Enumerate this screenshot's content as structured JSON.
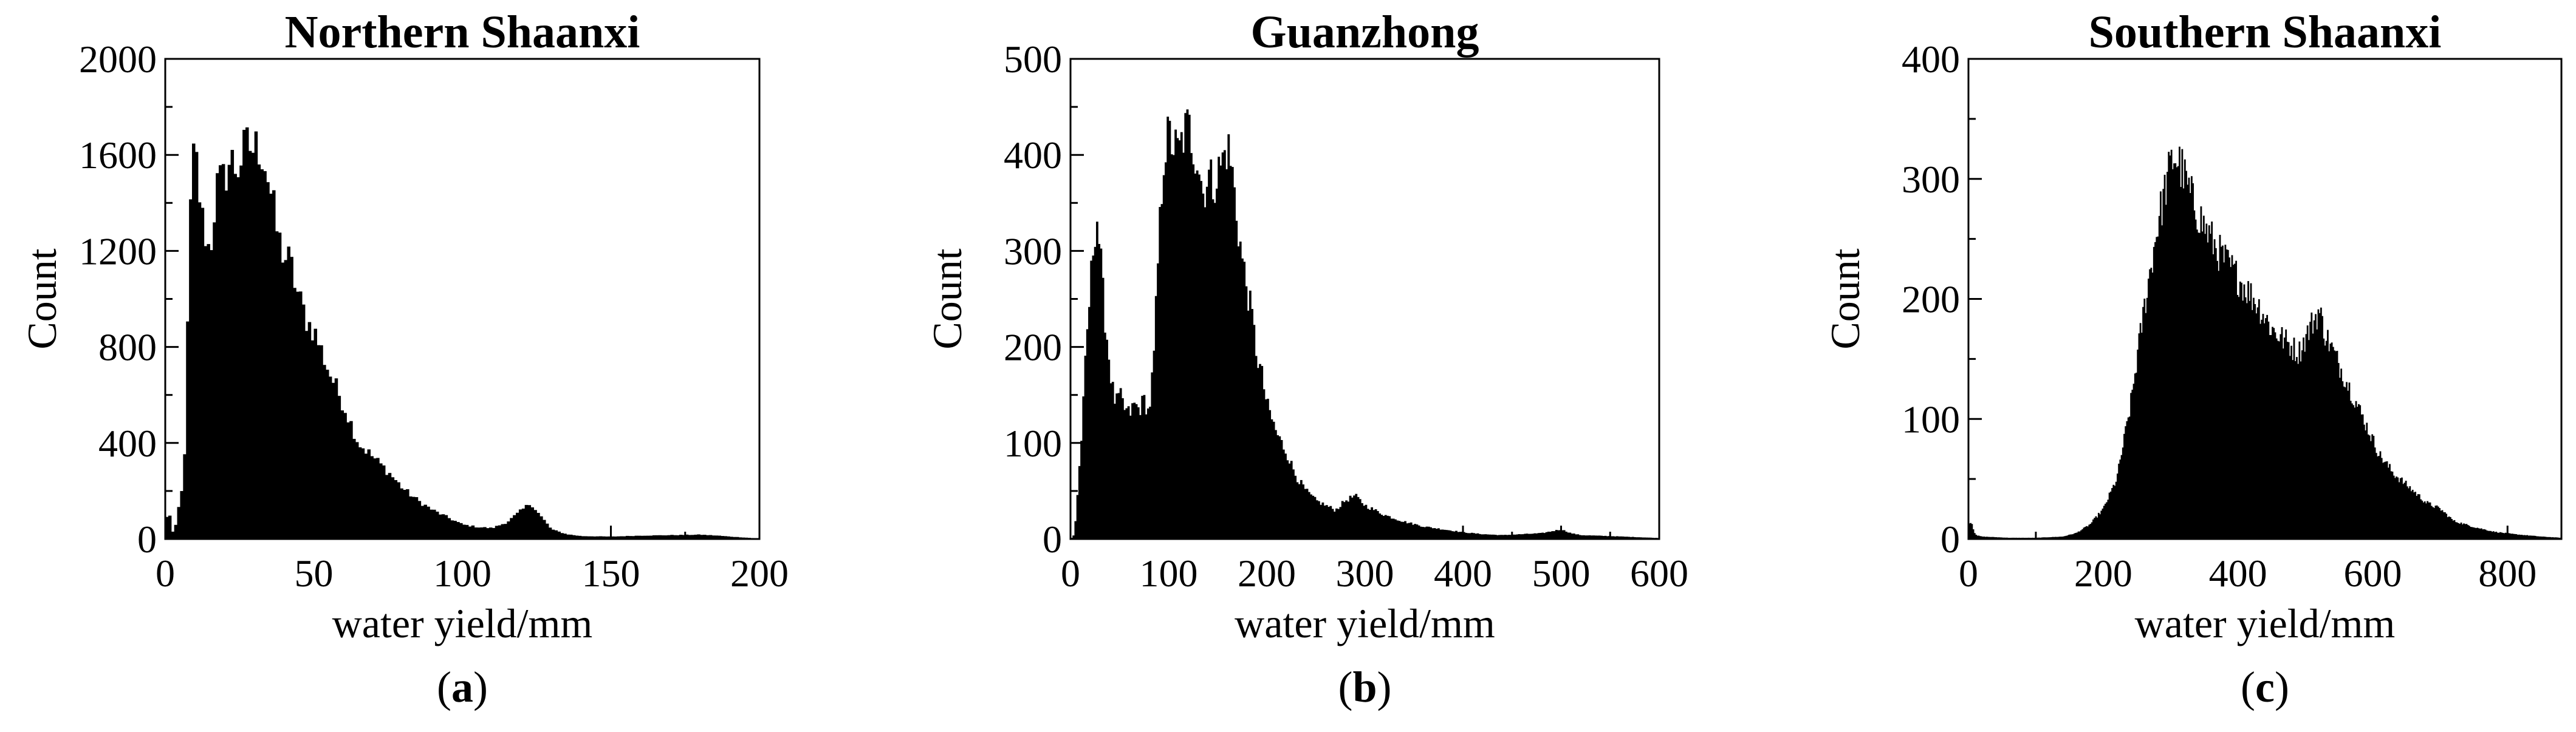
{
  "chart_data": [
    {
      "type": "bar",
      "panel_label": "a",
      "title": "Northern Shaanxi",
      "xlabel": "water yield/mm",
      "ylabel": "Count",
      "xlim": [
        0,
        200
      ],
      "ylim": [
        0,
        2000
      ],
      "xticks": [
        0,
        50,
        100,
        150,
        200
      ],
      "yticks": [
        0,
        400,
        800,
        1200,
        1600,
        2000
      ],
      "grid": false,
      "bin_width": 1,
      "profile": [
        [
          0,
          20
        ],
        [
          1,
          160
        ],
        [
          2,
          40
        ],
        [
          3,
          20
        ],
        [
          4,
          90
        ],
        [
          5,
          170
        ],
        [
          6,
          220
        ],
        [
          7,
          520
        ],
        [
          8,
          1200
        ],
        [
          9,
          1550
        ],
        [
          10,
          1600
        ],
        [
          11,
          1520
        ],
        [
          12,
          1350
        ],
        [
          13,
          1300
        ],
        [
          14,
          1250
        ],
        [
          15,
          1180
        ],
        [
          16,
          1320
        ],
        [
          17,
          1430
        ],
        [
          18,
          1500
        ],
        [
          19,
          1460
        ],
        [
          20,
          1520
        ],
        [
          22,
          1580
        ],
        [
          24,
          1540
        ],
        [
          26,
          1600
        ],
        [
          28,
          1640
        ],
        [
          30,
          1620
        ],
        [
          32,
          1640
        ],
        [
          34,
          1550
        ],
        [
          36,
          1400
        ],
        [
          38,
          1250
        ],
        [
          40,
          1180
        ],
        [
          42,
          1150
        ],
        [
          45,
          1000
        ],
        [
          48,
          900
        ],
        [
          50,
          870
        ],
        [
          55,
          700
        ],
        [
          60,
          560
        ],
        [
          65,
          400
        ],
        [
          70,
          340
        ],
        [
          75,
          280
        ],
        [
          80,
          210
        ],
        [
          85,
          160
        ],
        [
          90,
          120
        ],
        [
          95,
          90
        ],
        [
          100,
          60
        ],
        [
          105,
          50
        ],
        [
          110,
          45
        ],
        [
          115,
          70
        ],
        [
          120,
          120
        ],
        [
          123,
          150
        ],
        [
          126,
          100
        ],
        [
          130,
          40
        ],
        [
          135,
          20
        ],
        [
          140,
          12
        ],
        [
          150,
          10
        ],
        [
          160,
          14
        ],
        [
          170,
          16
        ],
        [
          180,
          18
        ],
        [
          186,
          14
        ],
        [
          190,
          10
        ],
        [
          200,
          2
        ]
      ]
    },
    {
      "type": "bar",
      "panel_label": "b",
      "title": "Guanzhong",
      "xlabel": "water yield/mm",
      "ylabel": "Count",
      "xlim": [
        0,
        600
      ],
      "ylim": [
        0,
        500
      ],
      "xticks": [
        0,
        100,
        200,
        300,
        400,
        500,
        600
      ],
      "yticks": [
        0,
        100,
        200,
        300,
        400,
        500
      ],
      "grid": false,
      "bin_width": 2,
      "profile": [
        [
          0,
          0
        ],
        [
          4,
          5
        ],
        [
          8,
          60
        ],
        [
          12,
          120
        ],
        [
          16,
          200
        ],
        [
          20,
          260
        ],
        [
          24,
          320
        ],
        [
          27,
          335
        ],
        [
          30,
          300
        ],
        [
          34,
          240
        ],
        [
          38,
          200
        ],
        [
          42,
          160
        ],
        [
          46,
          140
        ],
        [
          50,
          150
        ],
        [
          55,
          135
        ],
        [
          60,
          130
        ],
        [
          65,
          140
        ],
        [
          70,
          135
        ],
        [
          75,
          145
        ],
        [
          80,
          130
        ],
        [
          85,
          190
        ],
        [
          90,
          310
        ],
        [
          95,
          400
        ],
        [
          100,
          420
        ],
        [
          105,
          410
        ],
        [
          110,
          400
        ],
        [
          115,
          420
        ],
        [
          120,
          430
        ],
        [
          125,
          410
        ],
        [
          130,
          395
        ],
        [
          135,
          360
        ],
        [
          140,
          380
        ],
        [
          145,
          370
        ],
        [
          150,
          380
        ],
        [
          155,
          395
        ],
        [
          160,
          410
        ],
        [
          165,
          380
        ],
        [
          170,
          330
        ],
        [
          175,
          290
        ],
        [
          180,
          260
        ],
        [
          185,
          230
        ],
        [
          190,
          190
        ],
        [
          195,
          170
        ],
        [
          200,
          140
        ],
        [
          210,
          110
        ],
        [
          220,
          90
        ],
        [
          230,
          65
        ],
        [
          240,
          50
        ],
        [
          250,
          40
        ],
        [
          260,
          35
        ],
        [
          270,
          30
        ],
        [
          280,
          40
        ],
        [
          290,
          45
        ],
        [
          300,
          35
        ],
        [
          320,
          25
        ],
        [
          340,
          18
        ],
        [
          360,
          13
        ],
        [
          380,
          10
        ],
        [
          400,
          7
        ],
        [
          420,
          5
        ],
        [
          440,
          4
        ],
        [
          460,
          5
        ],
        [
          480,
          6
        ],
        [
          490,
          8
        ],
        [
          500,
          10
        ],
        [
          510,
          6
        ],
        [
          520,
          4
        ],
        [
          550,
          3
        ],
        [
          600,
          1
        ]
      ]
    },
    {
      "type": "bar",
      "panel_label": "c",
      "title": "Southern Shaanxi",
      "xlabel": "water yield/mm",
      "ylabel": "Count",
      "xlim": [
        0,
        880
      ],
      "ylim": [
        0,
        400
      ],
      "xticks": [
        0,
        200,
        400,
        600,
        800
      ],
      "yticks": [
        0,
        100,
        200,
        300,
        400
      ],
      "grid": false,
      "bin_width": 2,
      "profile": [
        [
          0,
          12
        ],
        [
          4,
          15
        ],
        [
          8,
          6
        ],
        [
          12,
          3
        ],
        [
          20,
          2
        ],
        [
          60,
          1
        ],
        [
          100,
          1
        ],
        [
          140,
          2
        ],
        [
          160,
          5
        ],
        [
          180,
          12
        ],
        [
          200,
          25
        ],
        [
          220,
          50
        ],
        [
          240,
          110
        ],
        [
          260,
          190
        ],
        [
          280,
          260
        ],
        [
          295,
          300
        ],
        [
          305,
          320
        ],
        [
          315,
          310
        ],
        [
          330,
          285
        ],
        [
          350,
          260
        ],
        [
          370,
          240
        ],
        [
          390,
          225
        ],
        [
          410,
          210
        ],
        [
          430,
          195
        ],
        [
          450,
          175
        ],
        [
          470,
          165
        ],
        [
          490,
          155
        ],
        [
          510,
          180
        ],
        [
          520,
          190
        ],
        [
          530,
          170
        ],
        [
          550,
          145
        ],
        [
          570,
          120
        ],
        [
          590,
          95
        ],
        [
          610,
          70
        ],
        [
          630,
          55
        ],
        [
          650,
          45
        ],
        [
          680,
          30
        ],
        [
          700,
          25
        ],
        [
          720,
          15
        ],
        [
          750,
          10
        ],
        [
          780,
          6
        ],
        [
          810,
          4
        ],
        [
          850,
          2
        ],
        [
          880,
          1
        ]
      ]
    }
  ]
}
